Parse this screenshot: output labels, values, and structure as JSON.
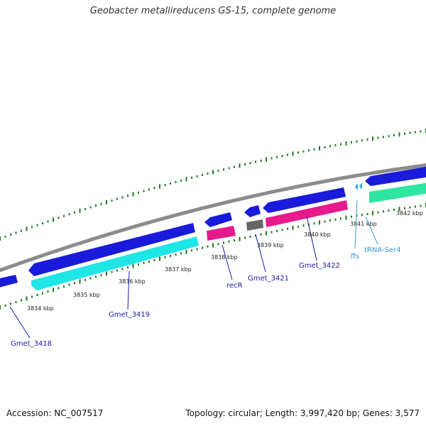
{
  "title": "Geobacter metallireducens GS-15, complete genome",
  "footer": {
    "accession": "Accession: NC_007517",
    "summary": "Topology: circular; Length: 3,997,420 bp; Genes: 3,577"
  },
  "colors": {
    "backbone": "#888888",
    "ticks": "#1a7a1a",
    "cds_dark": "#1a1adb",
    "cds_cyan": "#1fe6e6",
    "cds_magenta": "#e61a8c",
    "cds_green": "#2ee6a0",
    "cds_gray": "#666666",
    "rna": "#33a8e6",
    "label_dark": "#1a1aaa",
    "label_rna": "#3399dd"
  },
  "kbp_labels": [
    "3834 kbp",
    "3835 kbp",
    "3836 kbp",
    "3837 kbp",
    "3838 kbp",
    "3839 kbp",
    "3840 kbp",
    "3841 kbp",
    "3842 kbp"
  ],
  "gene_labels": {
    "gmet_3418": "Gmet_3418",
    "gmet_3419": "Gmet_3419",
    "recR": "recR",
    "gmet_3421": "Gmet_3421",
    "gmet_3422": "Gmet_3422",
    "ffs": "ffs",
    "trna_ser4": "tRNA-Ser4"
  }
}
